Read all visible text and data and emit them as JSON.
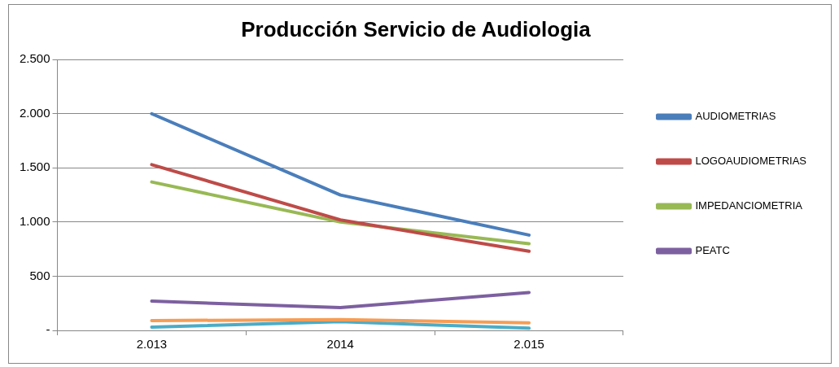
{
  "chart_data": {
    "type": "line",
    "title": "Producción Servicio de Audiologia",
    "categories": [
      "2.013",
      "2014",
      "2.015"
    ],
    "series": [
      {
        "name": "AUDIOMETRIAS",
        "color": "#4a7ebb",
        "values": [
          2000,
          1250,
          880
        ]
      },
      {
        "name": "LOGOAUDIOMETRIAS",
        "color": "#be4b48",
        "values": [
          1530,
          1020,
          730
        ]
      },
      {
        "name": "IMPEDANCIOMETRIA",
        "color": "#98b954",
        "values": [
          1370,
          1000,
          800
        ]
      },
      {
        "name": "PEATC",
        "color": "#7d60a0",
        "values": [
          270,
          210,
          350
        ]
      },
      {
        "color": "#f59d56",
        "values": [
          90,
          100,
          70
        ]
      },
      {
        "color": "#4bacc6",
        "values": [
          30,
          80,
          20
        ]
      }
    ],
    "ylim": [
      0,
      2500
    ],
    "yticks": [
      {
        "value": 0,
        "label": "-"
      },
      {
        "value": 500,
        "label": "500"
      },
      {
        "value": 1000,
        "label": "1.000"
      },
      {
        "value": 1500,
        "label": "1.500"
      },
      {
        "value": 2000,
        "label": "2.000"
      },
      {
        "value": 2500,
        "label": "2.500"
      }
    ],
    "grid": "y",
    "legend": "right",
    "marker": "none",
    "line_style": "solid"
  }
}
